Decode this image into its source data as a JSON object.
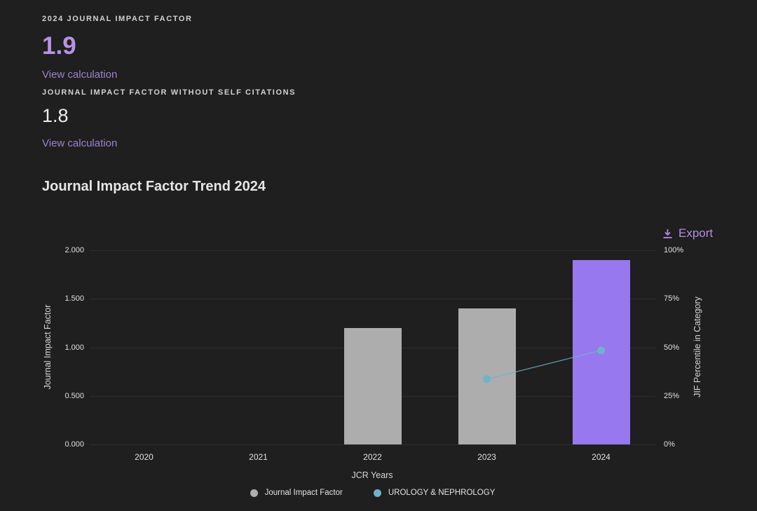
{
  "page": {
    "background": "#1e1f1e"
  },
  "metrics": [
    {
      "label": "2024 JOURNAL IMPACT FACTOR",
      "value": "1.9",
      "value_color": "#b793e6",
      "link": "View calculation"
    },
    {
      "label": "JOURNAL IMPACT FACTOR WITHOUT SELF CITATIONS",
      "value": "1.8",
      "value_color": "#ececec",
      "link": "View calculation"
    }
  ],
  "section": {
    "title": "Journal Impact Factor Trend 2024",
    "export_label": "Export",
    "export_color": "#b48ce6",
    "export_icon": "download-icon"
  },
  "chart_data": {
    "type": "bar",
    "categories": [
      "2020",
      "2021",
      "2022",
      "2023",
      "2024"
    ],
    "series": [
      {
        "name": "Journal Impact Factor",
        "type": "bar",
        "axis": "left",
        "color": "#adadad",
        "highlight_color": "#9878ef",
        "highlight_index": 4,
        "values": [
          null,
          null,
          1.2,
          1.4,
          1.9
        ]
      },
      {
        "name": "UROLOGY & NEPHROLOGY",
        "type": "line",
        "axis": "right",
        "color": "#6fb3cb",
        "values": [
          null,
          null,
          null,
          33.6,
          48.4
        ]
      }
    ],
    "title": "Journal Impact Factor Trend 2024",
    "xlabel": "JCR Years",
    "ylabel_left": "Journal Impact Factor",
    "ylabel_right": "JIF Percentile in Category",
    "left_ticks": [
      "2.000",
      "1.500",
      "1.000",
      "0.500",
      "0.000"
    ],
    "right_ticks": [
      "100%",
      "75%",
      "50%",
      "25%",
      "0%"
    ],
    "left_ylim": [
      0,
      2.0
    ],
    "right_ylim": [
      0,
      100
    ],
    "grid": true,
    "legend_position": "bottom"
  }
}
